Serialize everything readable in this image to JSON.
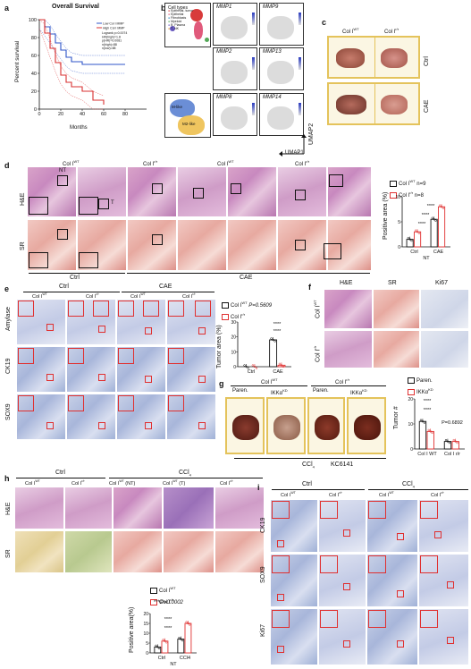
{
  "panels": {
    "a": {
      "letter": "a",
      "title": "Overall Survival",
      "ylabel": "Percent survival",
      "xlabel": "Months",
      "legend_low": "Low Col I MMP",
      "legend_high": "High Col I MMP",
      "stats": [
        "Logrank p=0.0074",
        "HR(high)=1.8",
        "p(HR)=0.0081",
        "n(high)=88",
        "n(low)=88"
      ],
      "yticks": [
        "100",
        "80",
        "60",
        "40",
        "20",
        "0"
      ],
      "xticks": [
        "0",
        "20",
        "40",
        "60",
        "80"
      ]
    },
    "b": {
      "letter": "b",
      "celltypes_title": "Cell types",
      "celltypes_legend": [
        "Epithelial- tumor",
        "Epithelial",
        "Fibroblasts",
        "Myeloid",
        "B_Plasma",
        "T_NK"
      ],
      "m_labels": [
        "M-like",
        "M2-like"
      ],
      "genes": [
        "MMP1",
        "MMP9",
        "MMP2",
        "MMP13",
        "MMP8",
        "MMP14"
      ],
      "umap1": "UMAP1",
      "umap2": "UMAP2"
    },
    "c": {
      "letter": "c",
      "col_wt": "Col I",
      "col_wt_sup": "WT",
      "col_r": "Col I",
      "col_r_sup": "r/r",
      "row1": "Ctrl",
      "row2": "CAE"
    },
    "d": {
      "letter": "d",
      "headers": [
        "Col I",
        "Col I",
        "Col I",
        "Col I"
      ],
      "header_sups": [
        "WT",
        "r/r",
        "WT",
        "r/r"
      ],
      "rows": [
        "H&E",
        "SR"
      ],
      "bottom": [
        "Ctrl",
        "CAE"
      ],
      "marks": [
        "NT",
        "T"
      ],
      "legend": [
        "Col I",
        "Col I"
      ],
      "legend_sups": [
        "WT",
        "r/r"
      ],
      "legend_n": [
        "n=9",
        "n=8"
      ],
      "ylabel": "Positive area (%)",
      "xcats": [
        "Ctrl",
        "CAE"
      ],
      "xgroup": "NT",
      "stars": "****"
    },
    "e": {
      "letter": "e",
      "headers": [
        "Ctrl",
        "CAE"
      ],
      "subheaders": [
        "Col I",
        "Col I",
        "Col I",
        "Col I"
      ],
      "subheader_sups": [
        "WT",
        "r/r",
        "WT",
        "r/r"
      ],
      "rows": [
        "Amylase",
        "CK19",
        "SOX9"
      ],
      "legend": [
        "Col I",
        "Col I"
      ],
      "legend_sups": [
        "WT",
        "r/r"
      ],
      "pvalue": "P=0.5609",
      "ylabel": "Tumor area (%)",
      "xcats": [
        "Ctrl",
        "CAE"
      ],
      "stars": "****"
    },
    "f": {
      "letter": "f",
      "cols": [
        "H&E",
        "SR",
        "Ki67"
      ],
      "rows": [
        "Col I",
        "Col I"
      ],
      "row_sups": [
        "WT",
        "r/r"
      ]
    },
    "g": {
      "letter": "g",
      "headers": [
        "Col I",
        "Col I"
      ],
      "header_sups": [
        "WT",
        "r/r"
      ],
      "subheaders": [
        "Paren.",
        "IKKα",
        "Paren.",
        "IKKα"
      ],
      "subheader_sups": [
        "",
        "KD",
        "",
        "KD"
      ],
      "bottom": "CCl",
      "bottom_sub": "4",
      "bottom2": "KC6141",
      "legend": [
        "Paren.",
        "IKKα"
      ],
      "legend_sup": "KD",
      "pvalue": "P=0.6892",
      "ylabel": "Tumor #",
      "xcats": [
        "Col I",
        "Col I"
      ],
      "xcat_sups": [
        "WT",
        "r/r"
      ],
      "stars": "****"
    },
    "h": {
      "letter": "h",
      "headers": [
        "Ctrl",
        "CCl"
      ],
      "header_sub": "4",
      "subheaders": [
        "Col I",
        "Col I",
        "Col I",
        "Col I",
        "Col I"
      ],
      "subheader_sups": [
        "WT",
        "r/r",
        "WT",
        "WT",
        "r/r"
      ],
      "subheader_suffix": [
        "",
        "",
        " (NT)",
        " (T)",
        ""
      ],
      "rows": [
        "H&E",
        "SR"
      ],
      "legend": [
        "Col I",
        "Col I"
      ],
      "legend_sups": [
        "WT",
        "r/r"
      ],
      "pvalue": "P=0.0002",
      "pstars": "***",
      "ylabel": "Positive area(%)",
      "xcats": [
        "Ctrl",
        "CCl"
      ],
      "xcat_sub": "4",
      "xgroup": "NT",
      "stars": "****"
    },
    "i": {
      "letter": "i",
      "headers": [
        "Ctrl",
        "CCl"
      ],
      "header_sub": "4",
      "subheaders": [
        "Col I",
        "Col I",
        "Col I",
        "Col I"
      ],
      "subheader_sups": [
        "WT",
        "r/r",
        "WT",
        "r/r"
      ],
      "rows": [
        "CK19",
        "SOX9",
        "Ki67"
      ]
    }
  },
  "chart_data": [
    {
      "type": "line",
      "title": "Overall Survival",
      "xlabel": "Months",
      "ylabel": "Percent survival",
      "xlim": [
        0,
        100
      ],
      "ylim": [
        0,
        100
      ],
      "series": [
        {
          "name": "Low Col I MMP",
          "x": [
            0,
            5,
            10,
            15,
            20,
            25,
            30,
            40,
            60,
            80
          ],
          "y": [
            100,
            92,
            84,
            74,
            66,
            58,
            53,
            50,
            50,
            50
          ]
        },
        {
          "name": "High Col I MMP",
          "x": [
            0,
            5,
            10,
            15,
            20,
            25,
            30,
            40,
            50,
            60
          ],
          "y": [
            100,
            85,
            68,
            52,
            38,
            30,
            25,
            20,
            10,
            5
          ]
        }
      ]
    },
    {
      "type": "bar",
      "ylabel": "Positive area (%)",
      "categories": [
        "Ctrl",
        "CAE"
      ],
      "series": [
        {
          "name": "Col I WT",
          "values": [
            1.5,
            5.5
          ]
        },
        {
          "name": "Col I r/r",
          "values": [
            3.0,
            8.0
          ]
        }
      ],
      "ylim": [
        0,
        10
      ]
    },
    {
      "type": "bar",
      "ylabel": "Tumor area (%)",
      "categories": [
        "Ctrl",
        "CAE"
      ],
      "series": [
        {
          "name": "Col I WT",
          "values": [
            0,
            18
          ]
        },
        {
          "name": "Col I r/r",
          "values": [
            0,
            1
          ]
        }
      ],
      "ylim": [
        0,
        30
      ]
    },
    {
      "type": "bar",
      "ylabel": "Tumor #",
      "categories": [
        "Col I WT",
        "Col I r/r"
      ],
      "series": [
        {
          "name": "Paren.",
          "values": [
            11,
            3
          ]
        },
        {
          "name": "IKKα KD",
          "values": [
            7,
            3
          ]
        }
      ],
      "ylim": [
        0,
        20
      ]
    },
    {
      "type": "bar",
      "ylabel": "Positive area(%)",
      "categories": [
        "Ctrl",
        "CCl4"
      ],
      "series": [
        {
          "name": "Col I WT",
          "values": [
            3,
            7
          ]
        },
        {
          "name": "Col I r/r",
          "values": [
            6,
            15
          ]
        }
      ],
      "ylim": [
        0,
        20
      ]
    }
  ]
}
